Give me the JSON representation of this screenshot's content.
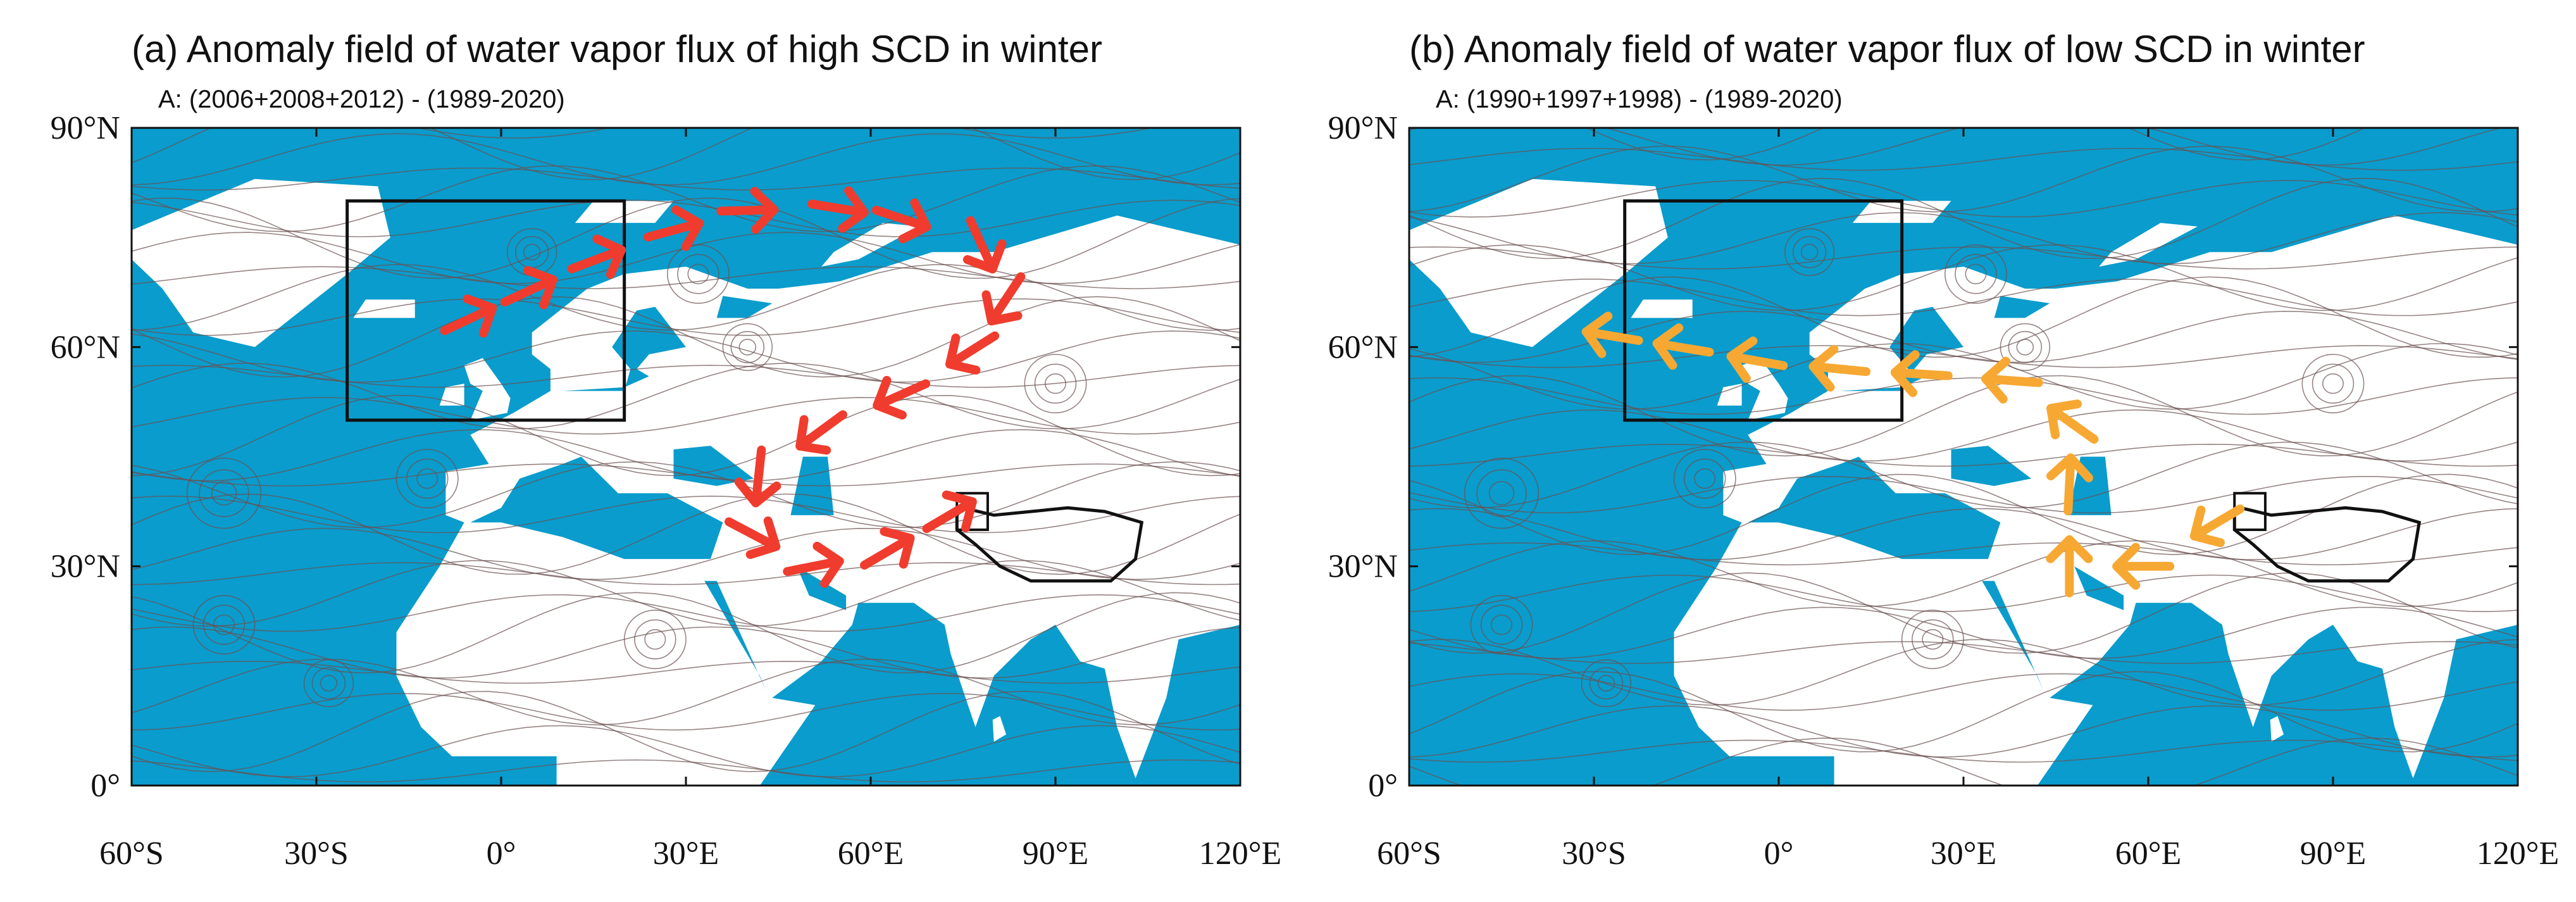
{
  "panels": [
    {
      "title": "(a) Anomaly field of water vapor flux of high SCD in winter",
      "subtitle": "A: (2006+2008+2012) - (1989-2020)",
      "xlim": [
        -60,
        120
      ],
      "ylim": [
        0,
        90
      ],
      "xticks": [
        {
          "value": -60,
          "label": "60°S"
        },
        {
          "value": -30,
          "label": "30°S"
        },
        {
          "value": 0,
          "label": "0°"
        },
        {
          "value": 30,
          "label": "30°E"
        },
        {
          "value": 60,
          "label": "60°E"
        },
        {
          "value": 90,
          "label": "90°E"
        },
        {
          "value": 120,
          "label": "120°E"
        }
      ],
      "yticks": [
        {
          "value": 0,
          "label": "0°"
        },
        {
          "value": 30,
          "label": "30°N"
        },
        {
          "value": 60,
          "label": "60°N"
        },
        {
          "value": 90,
          "label": "90°N"
        }
      ]
    },
    {
      "title": "(b) Anomaly field of water vapor flux of low SCD in winter",
      "subtitle": "A: (1990+1997+1998) - (1989-2020)",
      "xlim": [
        -60,
        120
      ],
      "ylim": [
        0,
        90
      ],
      "xticks": [
        {
          "value": -60,
          "label": "60°S"
        },
        {
          "value": -30,
          "label": "30°S"
        },
        {
          "value": 0,
          "label": "0°"
        },
        {
          "value": 30,
          "label": "30°E"
        },
        {
          "value": 60,
          "label": "60°E"
        },
        {
          "value": 90,
          "label": "90°E"
        },
        {
          "value": 120,
          "label": "120°E"
        }
      ],
      "yticks": [
        {
          "value": 0,
          "label": "0°"
        },
        {
          "value": 30,
          "label": "30°N"
        },
        {
          "value": 60,
          "label": "60°N"
        },
        {
          "value": 90,
          "label": "90°N"
        }
      ]
    }
  ]
}
